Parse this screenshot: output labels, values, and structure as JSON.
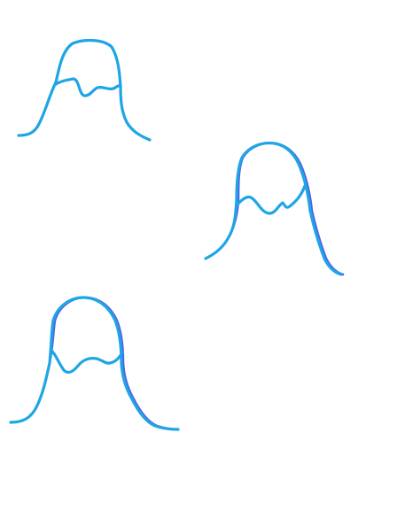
{
  "canvas": {
    "background": "#ffffff"
  },
  "colors": {
    "main_stroke": "#1ea5e6",
    "shadow_stroke": "#3f4fe0"
  },
  "sketches": [
    {
      "name": "hair-sketch-top-left"
    },
    {
      "name": "hair-sketch-middle-right"
    },
    {
      "name": "hair-sketch-bottom-left"
    }
  ]
}
